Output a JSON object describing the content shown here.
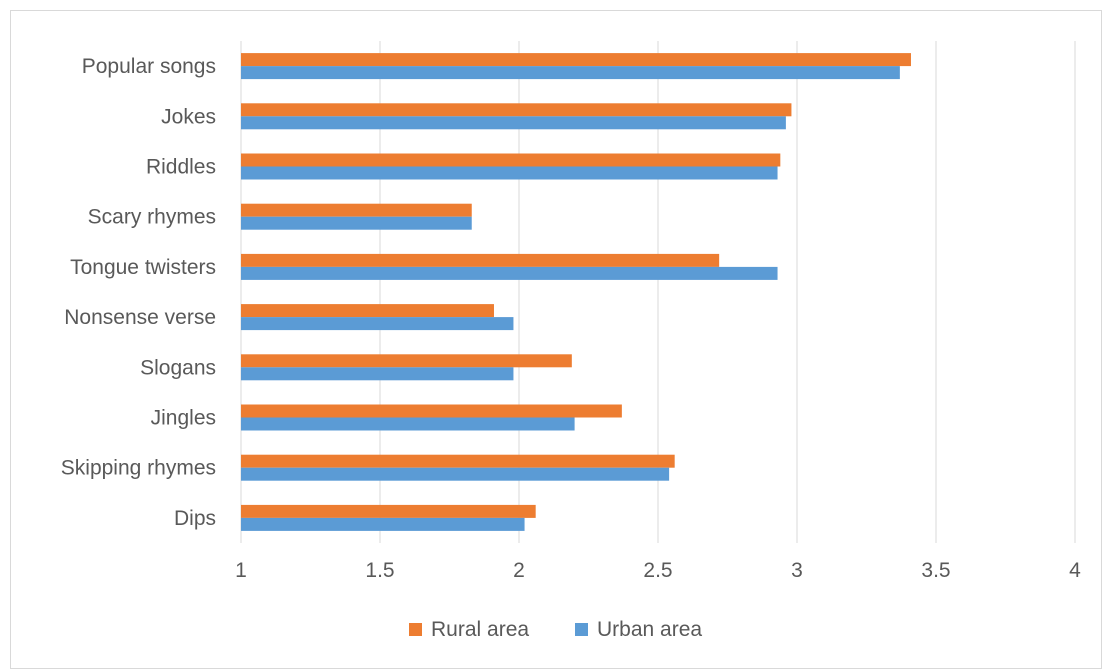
{
  "chart_data": {
    "type": "bar",
    "orientation": "horizontal",
    "title": "",
    "xlabel": "",
    "ylabel": "",
    "categories": [
      "Popular songs",
      "Jokes",
      "Riddles",
      "Scary rhymes",
      "Tongue twisters",
      "Nonsense verse",
      "Slogans",
      "Jingles",
      "Skipping rhymes",
      "Dips"
    ],
    "series": [
      {
        "name": "Rural area",
        "color": "#ED7D31",
        "values": [
          3.41,
          2.98,
          2.94,
          1.83,
          2.72,
          1.91,
          2.19,
          2.37,
          2.56,
          2.06
        ]
      },
      {
        "name": "Urban area",
        "color": "#5B9BD5",
        "values": [
          3.37,
          2.96,
          2.93,
          1.83,
          2.93,
          1.98,
          1.98,
          2.2,
          2.54,
          2.02
        ]
      }
    ],
    "xlim": [
      1,
      4
    ],
    "xticks": [
      "1",
      "1.5",
      "2",
      "2.5",
      "3",
      "3.5",
      "4"
    ],
    "xtick_values": [
      1,
      1.5,
      2,
      2.5,
      3,
      3.5,
      4
    ],
    "grid": "vertical",
    "legend_position": "bottom"
  }
}
